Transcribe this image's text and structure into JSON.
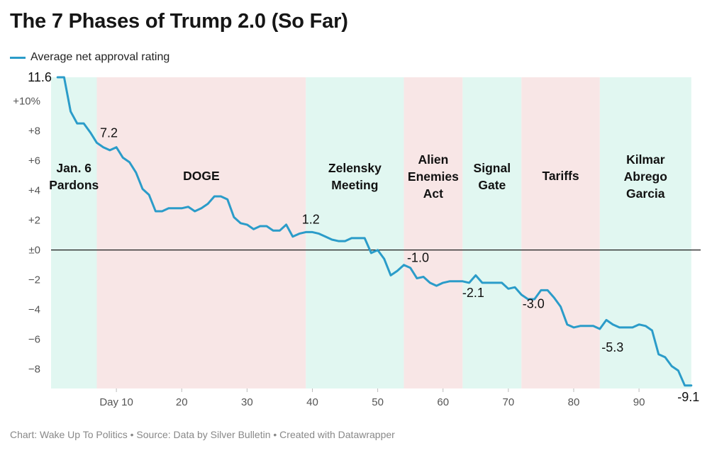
{
  "title": "The 7 Phases of Trump 2.0 (So Far)",
  "legend": {
    "label": "Average net approval rating",
    "color": "#2b9cc9"
  },
  "footer": "Chart: Wake Up To Politics • Source: Data by Silver Bulletin • Created with Datawrapper",
  "colors": {
    "green_band": "#e1f7f1",
    "red_band": "#f8e6e6",
    "line": "#2b9cc9",
    "zero_line": "#1a1a1a"
  },
  "chart_data": {
    "type": "line",
    "title": "The 7 Phases of Trump 2.0 (So Far)",
    "xlabel": "",
    "ylabel": "",
    "xlim": [
      0,
      99
    ],
    "ylim": [
      -9.3,
      11.6
    ],
    "grid": false,
    "legend_position": "top-left",
    "x_ticks": [
      {
        "x": 10,
        "label": "Day 10"
      },
      {
        "x": 20,
        "label": "20"
      },
      {
        "x": 30,
        "label": "30"
      },
      {
        "x": 40,
        "label": "40"
      },
      {
        "x": 50,
        "label": "50"
      },
      {
        "x": 60,
        "label": "60"
      },
      {
        "x": 70,
        "label": "70"
      },
      {
        "x": 80,
        "label": "80"
      },
      {
        "x": 90,
        "label": "90"
      }
    ],
    "y_ticks": [
      {
        "y": 10,
        "label": "+10%"
      },
      {
        "y": 8,
        "label": "+8"
      },
      {
        "y": 6,
        "label": "+6"
      },
      {
        "y": 4,
        "label": "+4"
      },
      {
        "y": 2,
        "label": "+2"
      },
      {
        "y": 0,
        "label": "±0"
      },
      {
        "y": -2,
        "label": "−2"
      },
      {
        "y": -4,
        "label": "−4"
      },
      {
        "y": -6,
        "label": "−6"
      },
      {
        "y": -8,
        "label": "−8"
      }
    ],
    "phases": [
      {
        "name": "Jan. 6\nPardons",
        "start": 0,
        "end": 7,
        "color": "green"
      },
      {
        "name": "DOGE",
        "start": 7,
        "end": 39,
        "color": "red"
      },
      {
        "name": "Zelensky\nMeeting",
        "start": 39,
        "end": 54,
        "color": "green"
      },
      {
        "name": "Alien\nEnemies\nAct",
        "start": 54,
        "end": 63,
        "color": "red"
      },
      {
        "name": "Signal\nGate",
        "start": 63,
        "end": 72,
        "color": "green"
      },
      {
        "name": "Tariffs",
        "start": 72,
        "end": 84,
        "color": "red"
      },
      {
        "name": "Kilmar\nAbrego\nGarcia",
        "start": 84,
        "end": 98,
        "color": "green"
      }
    ],
    "series": [
      {
        "name": "Average net approval rating",
        "x": [
          1,
          2,
          3,
          4,
          5,
          6,
          7,
          8,
          9,
          10,
          11,
          12,
          13,
          14,
          15,
          16,
          17,
          18,
          19,
          20,
          21,
          22,
          23,
          24,
          25,
          26,
          27,
          28,
          29,
          30,
          31,
          32,
          33,
          34,
          35,
          36,
          37,
          38,
          39,
          40,
          41,
          42,
          43,
          44,
          45,
          46,
          47,
          48,
          49,
          50,
          51,
          52,
          53,
          54,
          55,
          56,
          57,
          58,
          59,
          60,
          61,
          62,
          63,
          64,
          65,
          66,
          67,
          68,
          69,
          70,
          71,
          72,
          73,
          74,
          75,
          76,
          77,
          78,
          79,
          80,
          81,
          82,
          83,
          84,
          85,
          86,
          87,
          88,
          89,
          90,
          91,
          92,
          93,
          94,
          95,
          96,
          97,
          98
        ],
        "values": [
          11.6,
          11.6,
          9.3,
          8.5,
          8.5,
          7.9,
          7.2,
          6.9,
          6.7,
          6.9,
          6.2,
          5.9,
          5.2,
          4.1,
          3.7,
          2.6,
          2.6,
          2.8,
          2.8,
          2.8,
          2.9,
          2.6,
          2.8,
          3.1,
          3.6,
          3.6,
          3.4,
          2.2,
          1.8,
          1.7,
          1.4,
          1.6,
          1.6,
          1.3,
          1.3,
          1.7,
          0.9,
          1.1,
          1.2,
          1.2,
          1.1,
          0.9,
          0.7,
          0.6,
          0.6,
          0.8,
          0.8,
          0.8,
          -0.2,
          0.0,
          -0.6,
          -1.7,
          -1.4,
          -1.0,
          -1.2,
          -1.9,
          -1.8,
          -2.2,
          -2.4,
          -2.2,
          -2.1,
          -2.1,
          -2.1,
          -2.2,
          -1.7,
          -2.2,
          -2.2,
          -2.2,
          -2.2,
          -2.6,
          -2.5,
          -3.0,
          -3.3,
          -3.3,
          -2.7,
          -2.7,
          -3.2,
          -3.8,
          -5.0,
          -5.2,
          -5.1,
          -5.1,
          -5.1,
          -5.3,
          -4.7,
          -5.0,
          -5.2,
          -5.2,
          -5.2,
          -5.0,
          -5.1,
          -5.4,
          -7.0,
          -7.2,
          -7.8,
          -8.1,
          -9.1,
          -9.1
        ]
      }
    ],
    "annotations": [
      {
        "x": 7,
        "y": 7.2,
        "label": "7.2"
      },
      {
        "x": 39,
        "y": 1.2,
        "label": "1.2"
      },
      {
        "x": 54,
        "y": -1.0,
        "label": "-1.0"
      },
      {
        "x": 63,
        "y": -2.1,
        "label": "-2.1"
      },
      {
        "x": 72,
        "y": -3.0,
        "label": "-3.0"
      },
      {
        "x": 84,
        "y": -5.3,
        "label": "-5.3"
      },
      {
        "x": 98,
        "y": -9.1,
        "label": "-9.1"
      }
    ],
    "start_label": "11.6"
  }
}
